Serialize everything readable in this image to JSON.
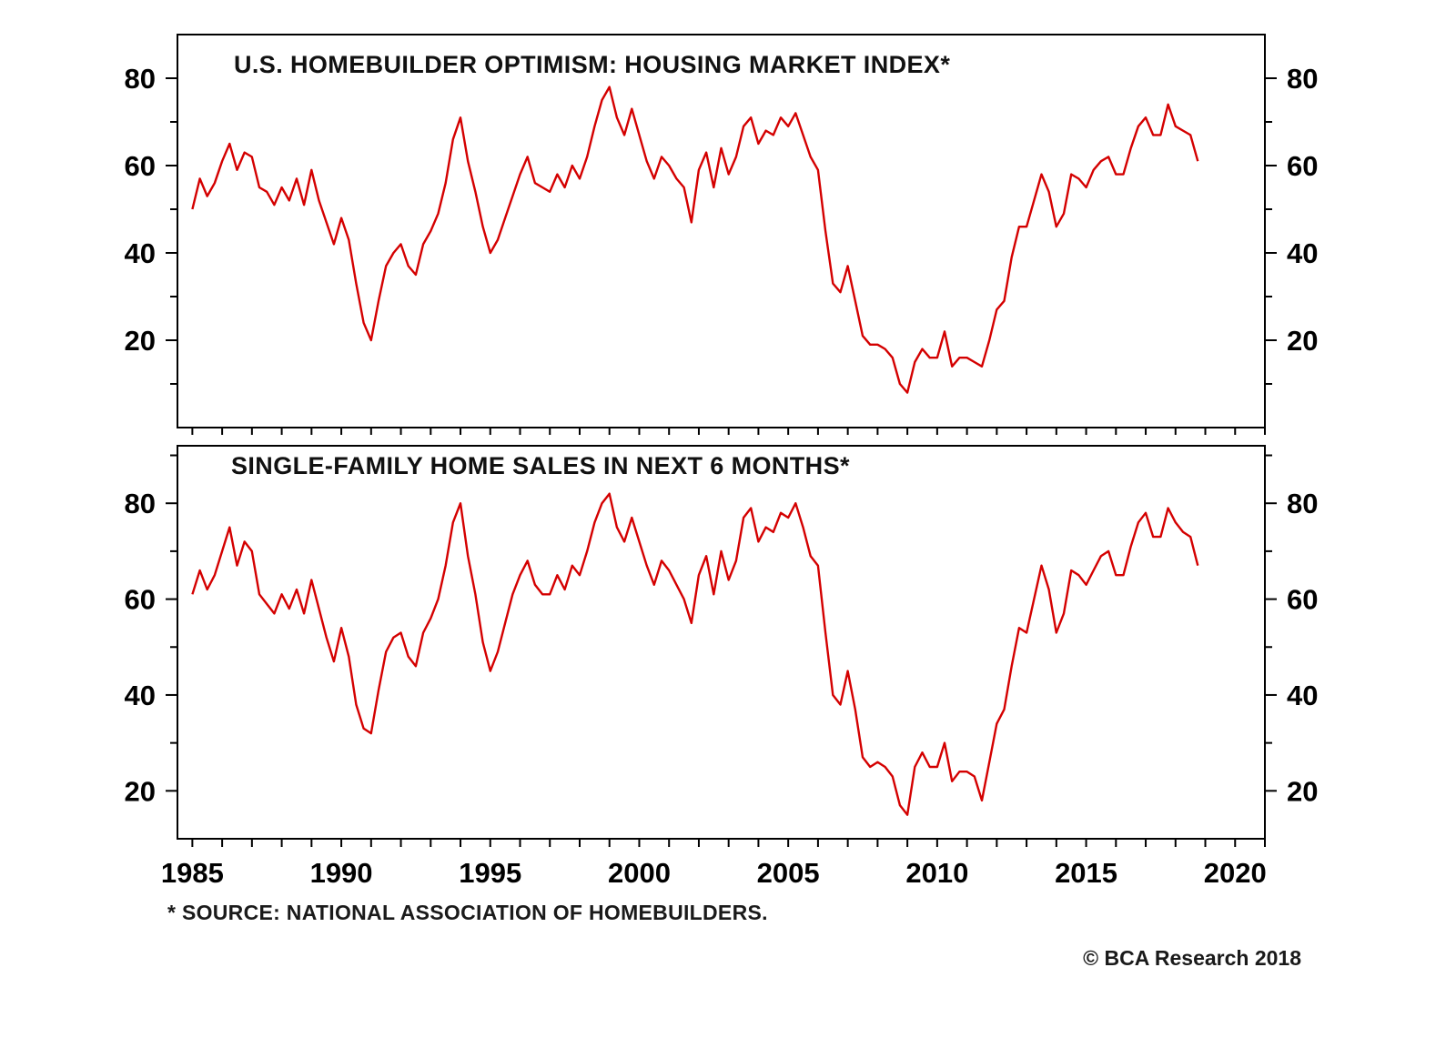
{
  "page": {
    "background": "#ffffff",
    "footnote": "* SOURCE: NATIONAL ASSOCIATION OF HOMEBUILDERS.",
    "copyright": "© BCA Research 2018"
  },
  "chart_data": [
    {
      "type": "line",
      "title": "U.S. HOMEBUILDER OPTIMISM: HOUSING MARKET INDEX*",
      "line_color": "#d40000",
      "x_start": 1985.0,
      "x_step": 0.25,
      "values": [
        50,
        57,
        53,
        56,
        61,
        65,
        59,
        63,
        62,
        55,
        54,
        51,
        55,
        52,
        57,
        51,
        59,
        52,
        47,
        42,
        48,
        43,
        33,
        24,
        20,
        29,
        37,
        40,
        42,
        37,
        35,
        42,
        45,
        49,
        56,
        66,
        71,
        61,
        54,
        46,
        40,
        43,
        48,
        53,
        58,
        62,
        56,
        55,
        54,
        58,
        55,
        60,
        57,
        62,
        69,
        75,
        78,
        71,
        67,
        73,
        67,
        61,
        57,
        62,
        60,
        57,
        55,
        47,
        59,
        63,
        55,
        64,
        58,
        62,
        69,
        71,
        65,
        68,
        67,
        71,
        69,
        72,
        67,
        62,
        59,
        45,
        33,
        31,
        37,
        29,
        21,
        19,
        19,
        18,
        16,
        10,
        8,
        15,
        18,
        16,
        16,
        22,
        14,
        16,
        16,
        15,
        14,
        20,
        27,
        29,
        39,
        46,
        46,
        52,
        58,
        54,
        46,
        49,
        58,
        57,
        55,
        59,
        61,
        62,
        58,
        58,
        64,
        69,
        71,
        67,
        67,
        74,
        69,
        68,
        67,
        61
      ],
      "xlim": [
        1984.5,
        2021
      ],
      "ylim": [
        0,
        90
      ],
      "yticks": [
        20,
        40,
        60,
        80
      ],
      "y_minor_step": 10,
      "xticks": [
        1985,
        1990,
        1995,
        2000,
        2005,
        2010,
        2015,
        2020
      ],
      "x_minor_step": 1,
      "grid": false,
      "legend": "none",
      "show_x_labels": false
    },
    {
      "type": "line",
      "title": "SINGLE-FAMILY HOME SALES IN NEXT 6 MONTHS*",
      "line_color": "#d40000",
      "x_start": 1985.0,
      "x_step": 0.25,
      "values": [
        61,
        66,
        62,
        65,
        70,
        75,
        67,
        72,
        70,
        61,
        59,
        57,
        61,
        58,
        62,
        57,
        64,
        58,
        52,
        47,
        54,
        48,
        38,
        33,
        32,
        41,
        49,
        52,
        53,
        48,
        46,
        53,
        56,
        60,
        67,
        76,
        80,
        69,
        61,
        51,
        45,
        49,
        55,
        61,
        65,
        68,
        63,
        61,
        61,
        65,
        62,
        67,
        65,
        70,
        76,
        80,
        82,
        75,
        72,
        77,
        72,
        67,
        63,
        68,
        66,
        63,
        60,
        55,
        65,
        69,
        61,
        70,
        64,
        68,
        77,
        79,
        72,
        75,
        74,
        78,
        77,
        80,
        75,
        69,
        67,
        53,
        40,
        38,
        45,
        37,
        27,
        25,
        26,
        25,
        23,
        17,
        15,
        25,
        28,
        25,
        25,
        30,
        22,
        24,
        24,
        23,
        18,
        26,
        34,
        37,
        46,
        54,
        53,
        60,
        67,
        62,
        53,
        57,
        66,
        65,
        63,
        66,
        69,
        70,
        65,
        65,
        71,
        76,
        78,
        73,
        73,
        79,
        76,
        74,
        73,
        67
      ],
      "xlim": [
        1984.5,
        2021
      ],
      "ylim": [
        10,
        92
      ],
      "yticks": [
        20,
        40,
        60,
        80
      ],
      "y_minor_step": 10,
      "xticks": [
        1985,
        1990,
        1995,
        2000,
        2005,
        2010,
        2015,
        2020
      ],
      "x_minor_step": 1,
      "grid": false,
      "legend": "none",
      "show_x_labels": true
    }
  ]
}
